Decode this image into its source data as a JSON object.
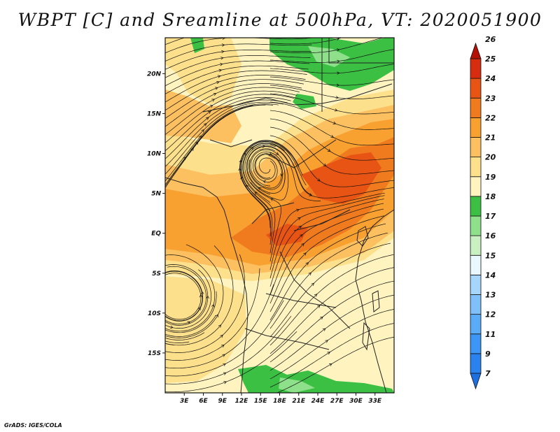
{
  "title": "WBPT [C] and Sreamline at 500hPa, VT: 2020051900",
  "credit": "GrADS: IGES/COLA",
  "map": {
    "lon_range": [
      0,
      36
    ],
    "lat_range": [
      -20,
      24.5
    ],
    "lat_ticks": [
      {
        "value": 20,
        "label": "20N"
      },
      {
        "value": 15,
        "label": "15N"
      },
      {
        "value": 10,
        "label": "10N"
      },
      {
        "value": 5,
        "label": "5N"
      },
      {
        "value": 0,
        "label": "EQ"
      },
      {
        "value": -5,
        "label": "5S"
      },
      {
        "value": -10,
        "label": "10S"
      },
      {
        "value": -15,
        "label": "15S"
      }
    ],
    "lon_ticks": [
      {
        "value": 3,
        "label": "3E"
      },
      {
        "value": 6,
        "label": "6E"
      },
      {
        "value": 9,
        "label": "9E"
      },
      {
        "value": 12,
        "label": "12E"
      },
      {
        "value": 15,
        "label": "15E"
      },
      {
        "value": 18,
        "label": "18E"
      },
      {
        "value": 21,
        "label": "21E"
      },
      {
        "value": 24,
        "label": "24E"
      },
      {
        "value": 27,
        "label": "27E"
      },
      {
        "value": 30,
        "label": "30E"
      },
      {
        "value": 33,
        "label": "33E"
      }
    ]
  },
  "colorbar": {
    "levels": [
      "7",
      "9",
      "11",
      "12",
      "13",
      "14",
      "15",
      "16",
      "17",
      "18",
      "19",
      "20",
      "21",
      "22",
      "23",
      "24",
      "25",
      "26"
    ],
    "colors": [
      "#1e6fe0",
      "#2a82ee",
      "#3c96f6",
      "#5aabf8",
      "#7fc0fa",
      "#a6d6fc",
      "#e8f8fc",
      "#c8f0c0",
      "#8ee08a",
      "#3cc044",
      "#fff4c0",
      "#fde08c",
      "#fcc060",
      "#f8a030",
      "#f07a1e",
      "#e85414",
      "#d82c10",
      "#b41008"
    ]
  }
}
